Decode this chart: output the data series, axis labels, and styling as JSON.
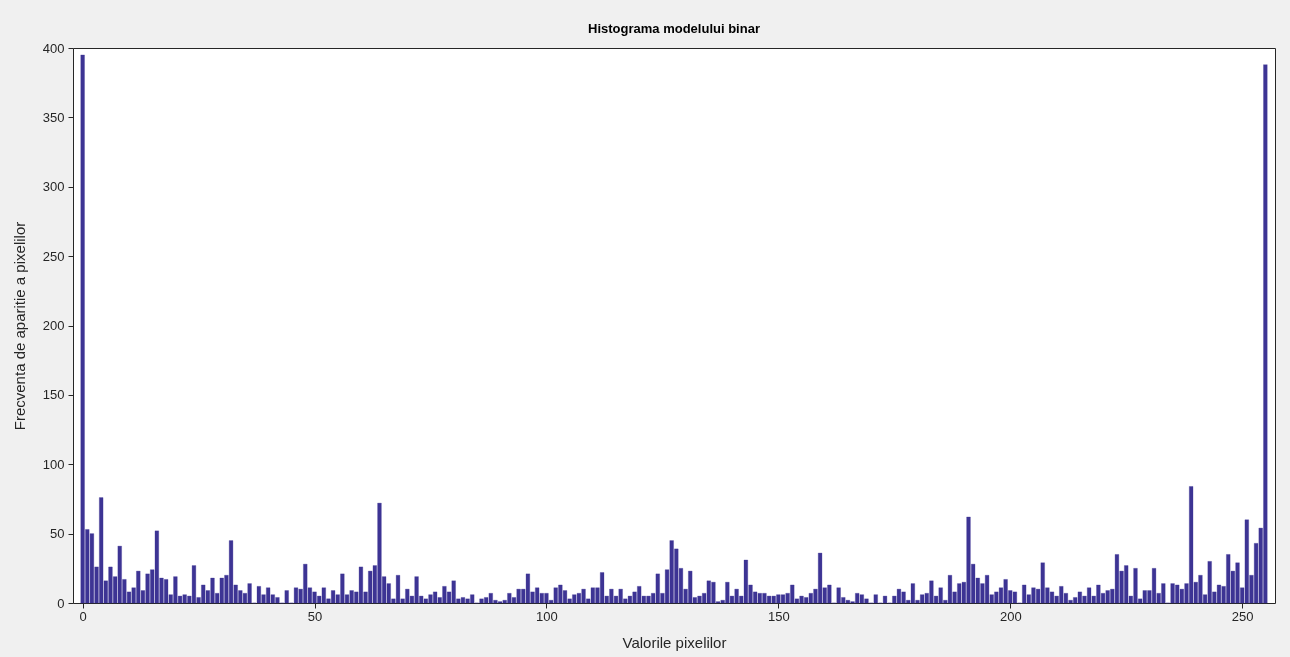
{
  "chart_data": {
    "type": "bar",
    "title": "Histograma modelului binar",
    "xlabel": "Valorile pixelilor",
    "ylabel": "Frecventa de aparitie a pixelilor",
    "color": "#3d3494",
    "xlim": [
      -1,
      256
    ],
    "xticks": [
      0,
      50,
      100,
      150,
      200,
      250
    ],
    "ylim": [
      0,
      400
    ],
    "yticks": [
      0,
      50,
      100,
      150,
      200,
      250,
      300,
      350,
      400
    ],
    "grid": false,
    "x": [
      0,
      1,
      2,
      3,
      4,
      5,
      6,
      7,
      8,
      9,
      10,
      11,
      12,
      13,
      14,
      15,
      16,
      17,
      18,
      19,
      20,
      21,
      22,
      23,
      24,
      25,
      26,
      27,
      28,
      29,
      30,
      31,
      32,
      33,
      34,
      35,
      36,
      37,
      38,
      39,
      40,
      41,
      42,
      43,
      44,
      45,
      46,
      47,
      48,
      49,
      50,
      51,
      52,
      53,
      54,
      55,
      56,
      57,
      58,
      59,
      60,
      61,
      62,
      63,
      64,
      65,
      66,
      67,
      68,
      69,
      70,
      71,
      72,
      73,
      74,
      75,
      76,
      77,
      78,
      79,
      80,
      81,
      82,
      83,
      84,
      85,
      86,
      87,
      88,
      89,
      90,
      91,
      92,
      93,
      94,
      95,
      96,
      97,
      98,
      99,
      100,
      101,
      102,
      103,
      104,
      105,
      106,
      107,
      108,
      109,
      110,
      111,
      112,
      113,
      114,
      115,
      116,
      117,
      118,
      119,
      120,
      121,
      122,
      123,
      124,
      125,
      126,
      127,
      128,
      129,
      130,
      131,
      132,
      133,
      134,
      135,
      136,
      137,
      138,
      139,
      140,
      141,
      142,
      143,
      144,
      145,
      146,
      147,
      148,
      149,
      150,
      151,
      152,
      153,
      154,
      155,
      156,
      157,
      158,
      159,
      160,
      161,
      162,
      163,
      164,
      165,
      166,
      167,
      168,
      169,
      170,
      171,
      172,
      173,
      174,
      175,
      176,
      177,
      178,
      179,
      180,
      181,
      182,
      183,
      184,
      185,
      186,
      187,
      188,
      189,
      190,
      191,
      192,
      193,
      194,
      195,
      196,
      197,
      198,
      199,
      200,
      201,
      202,
      203,
      204,
      205,
      206,
      207,
      208,
      209,
      210,
      211,
      212,
      213,
      214,
      215,
      216,
      217,
      218,
      219,
      220,
      221,
      222,
      223,
      224,
      225,
      226,
      227,
      228,
      229,
      230,
      231,
      232,
      233,
      234,
      235,
      236,
      237,
      238,
      239,
      240,
      241,
      242,
      243,
      244,
      245,
      246,
      247,
      248,
      249,
      250,
      251,
      252,
      253,
      254,
      255
    ],
    "values": [
      395,
      53,
      50,
      26,
      76,
      16,
      26,
      19,
      41,
      17,
      8,
      11,
      23,
      9,
      21,
      24,
      52,
      18,
      17,
      6,
      19,
      5,
      6,
      5,
      27,
      4,
      13,
      9,
      18,
      7,
      18,
      20,
      45,
      13,
      9,
      7,
      14,
      0,
      12,
      6,
      11,
      6,
      4,
      0,
      9,
      0,
      11,
      10,
      28,
      11,
      8,
      5,
      11,
      3,
      9,
      6,
      21,
      6,
      9,
      8,
      26,
      8,
      23,
      27,
      72,
      19,
      14,
      3,
      20,
      3,
      10,
      5,
      19,
      5,
      3,
      6,
      8,
      4,
      12,
      8,
      16,
      3,
      4,
      3,
      6,
      0,
      3,
      4,
      7,
      2,
      1,
      2,
      7,
      4,
      10,
      10,
      21,
      8,
      11,
      7,
      7,
      2,
      11,
      13,
      9,
      3,
      6,
      7,
      10,
      3,
      11,
      11,
      22,
      5,
      10,
      5,
      10,
      3,
      5,
      8,
      12,
      5,
      5,
      7,
      21,
      7,
      24,
      45,
      39,
      25,
      10,
      23,
      4,
      5,
      7,
      16,
      15,
      1,
      2,
      15,
      5,
      10,
      5,
      31,
      13,
      8,
      7,
      7,
      5,
      5,
      6,
      6,
      7,
      13,
      3,
      5,
      4,
      7,
      10,
      36,
      11,
      13,
      0,
      11,
      4,
      2,
      1,
      7,
      6,
      3,
      0,
      6,
      0,
      5,
      0,
      5,
      10,
      8,
      2,
      14,
      2,
      6,
      7,
      16,
      5,
      11,
      2,
      20,
      8,
      14,
      15,
      62,
      28,
      18,
      14,
      20,
      6,
      8,
      11,
      17,
      9,
      8,
      0,
      13,
      6,
      11,
      10,
      29,
      11,
      8,
      5,
      12,
      7,
      2,
      4,
      8,
      5,
      11,
      5,
      13,
      7,
      9,
      10,
      35,
      23,
      27,
      5,
      25,
      3,
      9,
      9,
      25,
      7,
      14,
      0,
      14,
      13,
      10,
      14,
      84,
      15,
      20,
      6,
      30,
      8,
      13,
      12,
      35,
      23,
      29,
      11,
      60,
      20,
      43,
      54,
      388
    ]
  }
}
